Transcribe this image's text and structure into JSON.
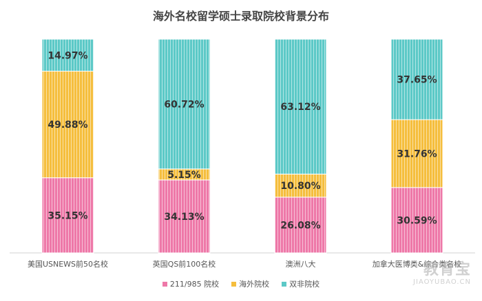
{
  "chart_data": {
    "type": "bar",
    "stacked": true,
    "title": "海外名校留学硕士录取院校背景分布",
    "categories": [
      "美国USNEWS前50名校",
      "英国QS前100名校",
      "澳洲八大",
      "加拿大医博类&综合类名校"
    ],
    "series": [
      {
        "name": "211/985 院校",
        "color": "#ee78a8",
        "values": [
          35.15,
          34.13,
          26.08,
          30.59
        ],
        "labels": [
          "35.15%",
          "34.13%",
          "26.08%",
          "30.59%"
        ]
      },
      {
        "name": "海外院校",
        "color": "#f5be3d",
        "values": [
          49.88,
          5.15,
          10.8,
          31.76
        ],
        "labels": [
          "49.88%",
          "5.15%",
          "10.80%",
          "31.76%"
        ]
      },
      {
        "name": "双非院校",
        "color": "#5cc9c7",
        "values": [
          14.97,
          60.72,
          63.12,
          37.65
        ],
        "labels": [
          "14.97%",
          "60.72%",
          "63.12%",
          "37.65%"
        ]
      }
    ],
    "ylim": [
      0,
      100
    ],
    "grid": false,
    "legend_position": "bottom"
  },
  "watermark": {
    "logo_text": "教育宝",
    "url": "JIAOYUBAO.CN"
  }
}
